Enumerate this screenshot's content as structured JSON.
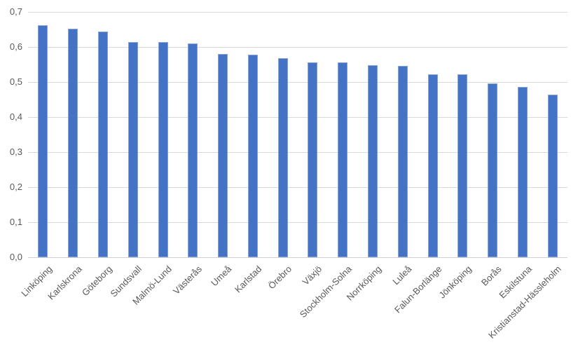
{
  "chart_data": {
    "type": "bar",
    "title": "",
    "xlabel": "",
    "ylabel": "",
    "categories": [
      "Linköping",
      "Karlskrona",
      "Göteborg",
      "Sundsvall",
      "Malmö-Lund",
      "Västerås",
      "Umeå",
      "Karlstad",
      "Örebro",
      "Växjö",
      "Stockholm-Solna",
      "Norrköping",
      "Luleå",
      "Falun-Borlänge",
      "Jönköping",
      "Borås",
      "Eskilstuna",
      "Kristianstad-Hässleholm"
    ],
    "values": [
      0.662,
      0.652,
      0.645,
      0.615,
      0.614,
      0.61,
      0.58,
      0.579,
      0.568,
      0.557,
      0.556,
      0.548,
      0.547,
      0.523,
      0.522,
      0.496,
      0.486,
      0.465
    ],
    "ylim": [
      0.0,
      0.7
    ],
    "ytick_step": 0.1,
    "ytick_labels": [
      "0,0",
      "0,1",
      "0,2",
      "0,3",
      "0,4",
      "0,5",
      "0,6",
      "0,7"
    ],
    "decimal_separator": ",",
    "grid": true,
    "legend": false,
    "colors": {
      "bar_fill": "#4472C4",
      "gridline": "#D9D9D9",
      "axis_line": "#D0D0D0",
      "tick_text": "#595959",
      "background": "#FFFFFF"
    }
  }
}
